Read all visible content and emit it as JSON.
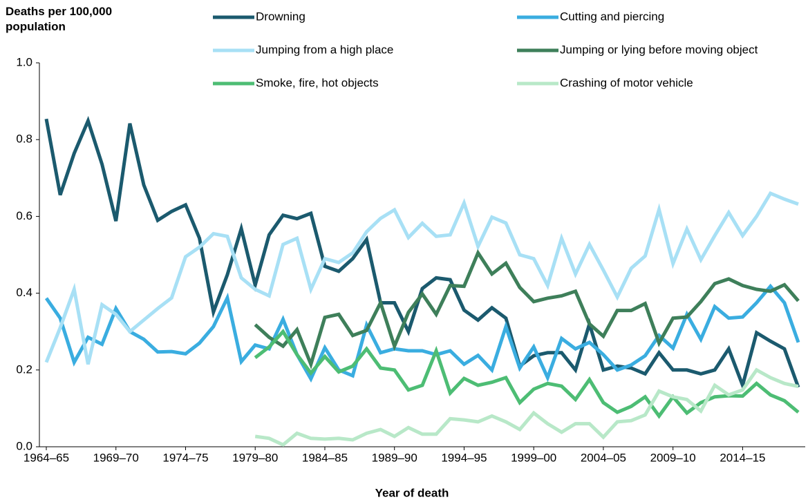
{
  "chart_data": {
    "type": "line",
    "y_label": "Deaths per 100,000 population",
    "x_label": "Year of death",
    "ylim": [
      0,
      1
    ],
    "yticks": [
      {
        "value": 0,
        "label": "0.0"
      },
      0.2,
      0.4,
      0.6,
      0.8,
      {
        "value": 1,
        "label": "1.0"
      }
    ],
    "grid": false,
    "categories": [
      "1964–65",
      null,
      null,
      null,
      null,
      "1969–70",
      null,
      null,
      null,
      null,
      "1974–75",
      null,
      null,
      null,
      null,
      "1979–80",
      null,
      null,
      null,
      null,
      "1984–85",
      null,
      null,
      null,
      null,
      "1989–90",
      null,
      null,
      null,
      null,
      "1994–95",
      null,
      null,
      null,
      null,
      "1999–00",
      null,
      null,
      null,
      null,
      "2004–05",
      null,
      null,
      null,
      null,
      "2009–10",
      null,
      null,
      null,
      null,
      "2014–15",
      null,
      null,
      null,
      null
    ],
    "series": [
      {
        "name": "Drowning",
        "color": "#1b5a6e",
        "values": [
          0.854,
          0.656,
          0.764,
          0.849,
          0.736,
          0.588,
          0.842,
          0.682,
          0.59,
          0.613,
          0.63,
          0.543,
          0.351,
          0.448,
          0.568,
          0.421,
          0.552,
          0.603,
          0.594,
          0.608,
          0.47,
          0.457,
          0.49,
          0.54,
          0.375,
          0.375,
          0.3,
          0.412,
          0.44,
          0.435,
          0.356,
          0.33,
          0.362,
          0.335,
          0.21,
          0.237,
          0.245,
          0.245,
          0.2,
          0.32,
          0.2,
          0.21,
          0.205,
          0.19,
          0.245,
          0.2,
          0.2,
          0.19,
          0.2,
          0.255,
          0.16,
          0.297,
          0.275,
          0.255,
          0.155
        ]
      },
      {
        "name": "Cutting and piercing",
        "color": "#3aade0",
        "values": [
          0.387,
          0.335,
          0.22,
          0.285,
          0.267,
          0.36,
          0.3,
          0.28,
          0.247,
          0.248,
          0.242,
          0.27,
          0.313,
          0.388,
          0.222,
          0.265,
          0.255,
          0.332,
          0.24,
          0.177,
          0.258,
          0.2,
          0.185,
          0.317,
          0.245,
          0.255,
          0.25,
          0.25,
          0.24,
          0.25,
          0.215,
          0.238,
          0.2,
          0.313,
          0.205,
          0.26,
          0.18,
          0.282,
          0.255,
          0.272,
          0.24,
          0.2,
          0.213,
          0.237,
          0.29,
          0.257,
          0.345,
          0.28,
          0.365,
          0.335,
          0.338,
          0.375,
          0.418,
          0.375,
          0.272
        ]
      },
      {
        "name": "Jumping from a high place",
        "color": "#a8e0f5",
        "values": [
          0.22,
          0.31,
          0.41,
          0.215,
          0.37,
          0.345,
          0.3,
          0.33,
          0.36,
          0.388,
          0.495,
          0.52,
          0.555,
          0.548,
          0.44,
          0.41,
          0.393,
          0.527,
          0.543,
          0.41,
          0.49,
          0.48,
          0.505,
          0.56,
          0.595,
          0.617,
          0.545,
          0.582,
          0.548,
          0.552,
          0.635,
          0.522,
          0.598,
          0.583,
          0.5,
          0.49,
          0.42,
          0.543,
          0.45,
          0.527,
          0.46,
          0.39,
          0.465,
          0.497,
          0.618,
          0.477,
          0.567,
          0.487,
          0.55,
          0.61,
          0.55,
          0.6,
          0.66,
          0.645,
          0.632
        ]
      },
      {
        "name": "Jumping or lying before moving object",
        "color": "#3e7f5a",
        "values": [
          null,
          null,
          null,
          null,
          null,
          null,
          null,
          null,
          null,
          null,
          null,
          null,
          null,
          null,
          null,
          0.318,
          0.285,
          0.262,
          0.305,
          0.215,
          0.337,
          0.345,
          0.29,
          0.303,
          0.375,
          0.262,
          0.35,
          0.398,
          0.345,
          0.42,
          0.418,
          0.505,
          0.45,
          0.478,
          0.415,
          0.378,
          0.387,
          0.393,
          0.405,
          0.32,
          0.288,
          0.355,
          0.355,
          0.373,
          0.27,
          0.335,
          0.338,
          0.378,
          0.425,
          0.437,
          0.42,
          0.41,
          0.405,
          0.422,
          0.38
        ]
      },
      {
        "name": "Smoke, fire, hot objects",
        "color": "#4dbd74",
        "values": [
          null,
          null,
          null,
          null,
          null,
          null,
          null,
          null,
          null,
          null,
          null,
          null,
          null,
          null,
          null,
          0.232,
          0.26,
          0.3,
          0.24,
          0.192,
          0.235,
          0.195,
          0.21,
          0.255,
          0.205,
          0.2,
          0.148,
          0.16,
          0.25,
          0.14,
          0.178,
          0.16,
          0.168,
          0.18,
          0.115,
          0.15,
          0.165,
          0.158,
          0.123,
          0.175,
          0.115,
          0.09,
          0.105,
          0.13,
          0.08,
          0.13,
          0.088,
          0.115,
          0.13,
          0.133,
          0.132,
          0.165,
          0.135,
          0.12,
          0.09
        ]
      },
      {
        "name": "Crashing of motor vehicle",
        "color": "#b8e8c8",
        "values": [
          null,
          null,
          null,
          null,
          null,
          null,
          null,
          null,
          null,
          null,
          null,
          null,
          null,
          null,
          null,
          0.027,
          0.022,
          0.005,
          0.035,
          0.022,
          0.02,
          0.022,
          0.018,
          0.035,
          0.045,
          0.027,
          0.05,
          0.033,
          0.033,
          0.073,
          0.07,
          0.065,
          0.08,
          0.065,
          0.045,
          0.088,
          0.06,
          0.038,
          0.06,
          0.06,
          0.025,
          0.065,
          0.068,
          0.083,
          0.145,
          0.13,
          0.123,
          0.093,
          0.16,
          0.135,
          0.148,
          0.2,
          0.18,
          0.165,
          0.157
        ]
      }
    ]
  }
}
